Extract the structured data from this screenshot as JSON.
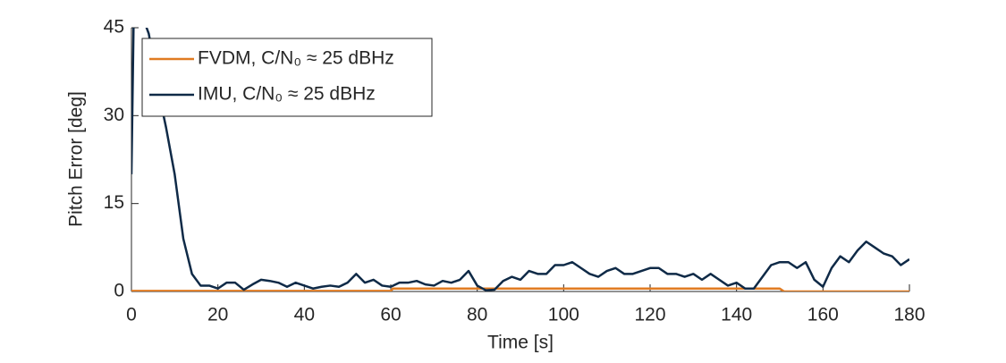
{
  "chart_data": {
    "type": "line",
    "xlabel": "Time [s]",
    "ylabel": "Pitch Error [deg]",
    "xlim": [
      0,
      180
    ],
    "xticks": [
      0,
      20,
      40,
      60,
      80,
      100,
      120,
      140,
      160,
      180
    ],
    "ylim": [
      0,
      45
    ],
    "yticks": [
      0,
      15,
      30,
      45
    ],
    "legend": "upper-left",
    "series": [
      {
        "name": "FVDM, C/N₀ ≈ 25 dBHz",
        "color": "#e07b22",
        "x": [
          0,
          60,
          60.5,
          150,
          151,
          180
        ],
        "values": [
          0.1,
          0.1,
          0.5,
          0.5,
          0,
          0
        ]
      },
      {
        "name": "IMU, C/N₀ ≈ 25 dBHz",
        "color": "#0f2a47",
        "x": [
          0,
          0.5,
          1,
          2,
          3,
          4,
          5,
          6,
          8,
          10,
          12,
          14,
          16,
          18,
          20,
          22,
          24,
          26,
          28,
          30,
          32,
          34,
          36,
          38,
          40,
          42,
          44,
          46,
          48,
          50,
          52,
          54,
          56,
          58,
          60,
          62,
          64,
          66,
          68,
          70,
          72,
          74,
          76,
          78,
          80,
          82,
          84,
          86,
          88,
          90,
          92,
          94,
          96,
          98,
          100,
          102,
          104,
          106,
          108,
          110,
          112,
          114,
          116,
          118,
          120,
          122,
          124,
          126,
          128,
          130,
          132,
          134,
          136,
          138,
          140,
          142,
          144,
          146,
          148,
          150,
          152,
          154,
          156,
          158,
          160,
          162,
          164,
          166,
          168,
          170,
          172,
          174,
          176,
          178,
          180
        ],
        "values": [
          20,
          46,
          50,
          48,
          46,
          44,
          40,
          35,
          28,
          20,
          9,
          3,
          1,
          1,
          0.5,
          1.5,
          1.5,
          0.3,
          1.2,
          2,
          1.8,
          1.5,
          0.8,
          1.5,
          1,
          0.5,
          0.8,
          1,
          0.8,
          1.5,
          3,
          1.5,
          2,
          1,
          0.8,
          1.5,
          1.5,
          1.8,
          1.2,
          1,
          1.8,
          1.5,
          2,
          3.5,
          1,
          0.2,
          0.3,
          1.8,
          2.5,
          2,
          3.5,
          3,
          3,
          4.5,
          4.5,
          5,
          4,
          3,
          2.5,
          3.5,
          4,
          3,
          3,
          3.5,
          4,
          4,
          3,
          3,
          2.5,
          3,
          2,
          3,
          2,
          1,
          1.5,
          0.5,
          0.5,
          2.5,
          4.5,
          5,
          5,
          4,
          5,
          2,
          0.8,
          4,
          6,
          5,
          7,
          8.5,
          7.5,
          6.5,
          6,
          4.5,
          5.5
        ]
      }
    ]
  }
}
